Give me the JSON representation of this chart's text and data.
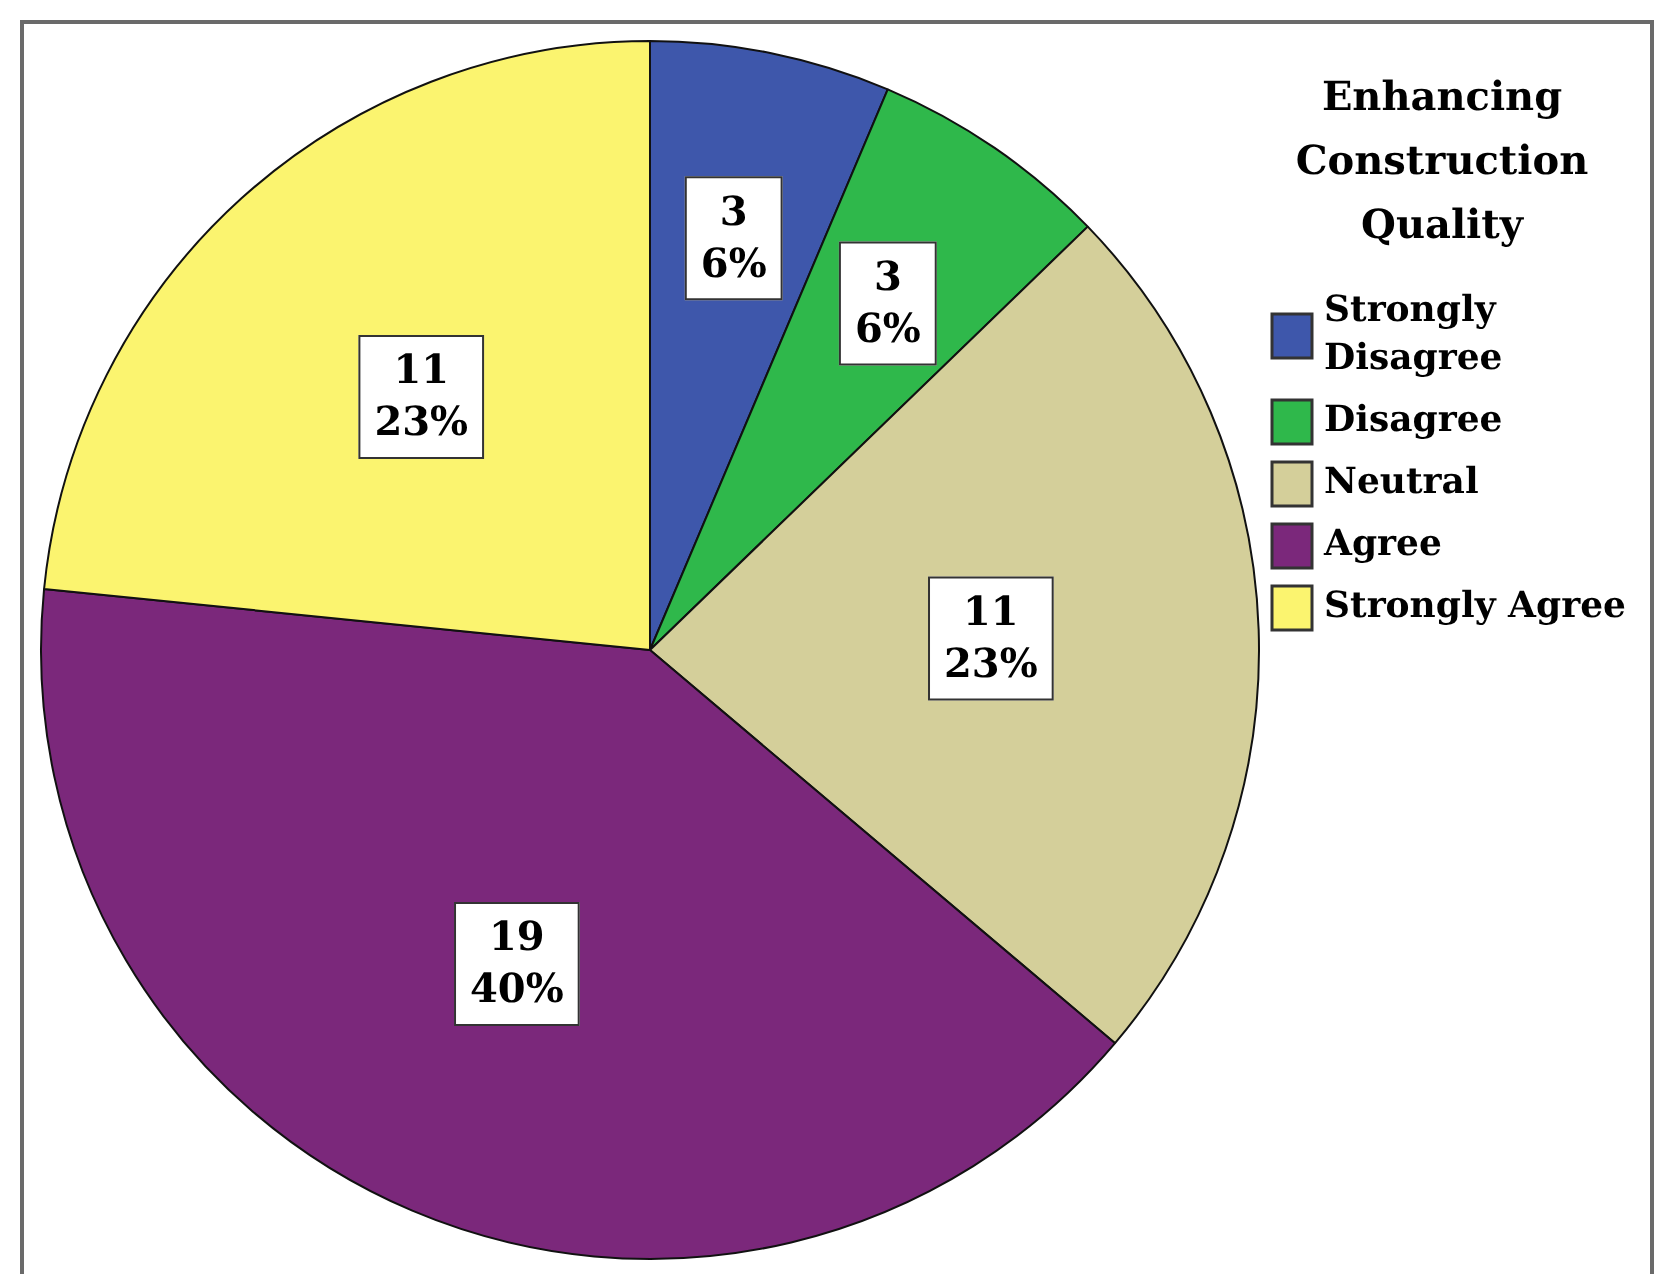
{
  "chart_data": {
    "type": "pie",
    "legend_title": "Enhancing Construction Quality",
    "categories": [
      "Strongly Disagree",
      "Disagree",
      "Neutral",
      "Agree",
      "Strongly Agree"
    ],
    "values": [
      3,
      3,
      11,
      19,
      11
    ],
    "colors": [
      "#3e57ab",
      "#2fb84b",
      "#d4cf9a",
      "#7b287b",
      "#fbf46f"
    ],
    "value_labels": [
      "3\n6%",
      "3\n6%",
      "11\n23%",
      "19\n40%",
      "11\n23%"
    ],
    "legend": "top right"
  }
}
